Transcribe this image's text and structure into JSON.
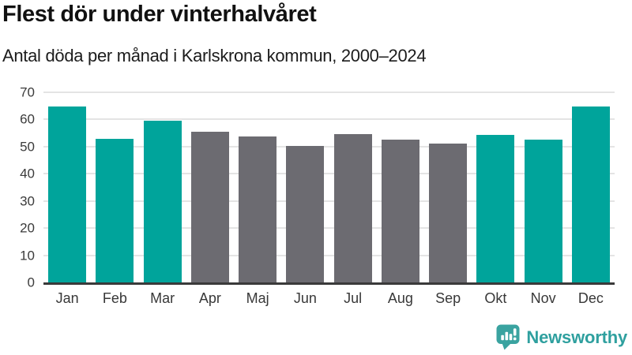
{
  "chart_data": {
    "type": "bar",
    "title": "Flest dör under vinterhalvåret",
    "subtitle": "Antal döda per månad i Karlskrona kommun, 2000–2024",
    "categories": [
      "Jan",
      "Feb",
      "Mar",
      "Apr",
      "Maj",
      "Jun",
      "Jul",
      "Aug",
      "Sep",
      "Okt",
      "Nov",
      "Dec"
    ],
    "values": [
      64.9,
      53.0,
      59.6,
      55.5,
      53.6,
      50.3,
      54.5,
      52.6,
      51.0,
      54.2,
      52.7,
      64.9
    ],
    "groups": [
      "winter",
      "winter",
      "winter",
      "summer",
      "summer",
      "summer",
      "summer",
      "summer",
      "summer",
      "winter",
      "winter",
      "winter"
    ],
    "palette": {
      "winter": "#00A49B",
      "summer": "#6C6B71"
    },
    "xlabel": "",
    "ylabel": "",
    "ylim": [
      0,
      70
    ],
    "yticks": [
      0,
      10,
      20,
      30,
      40,
      50,
      60,
      70
    ],
    "grid": true,
    "legend_position": "none"
  },
  "colors": {
    "background": "#ffffff",
    "gridline": "#e4e4e4",
    "axis_line": "#3a3a3a",
    "tick_label": "#3b3b3b",
    "title": "#111111",
    "logo_teal": "#2FA09F"
  },
  "logo": {
    "text": "Newsworthy",
    "icon": "newsworthy-speech-bubble-bar-chart-icon"
  }
}
